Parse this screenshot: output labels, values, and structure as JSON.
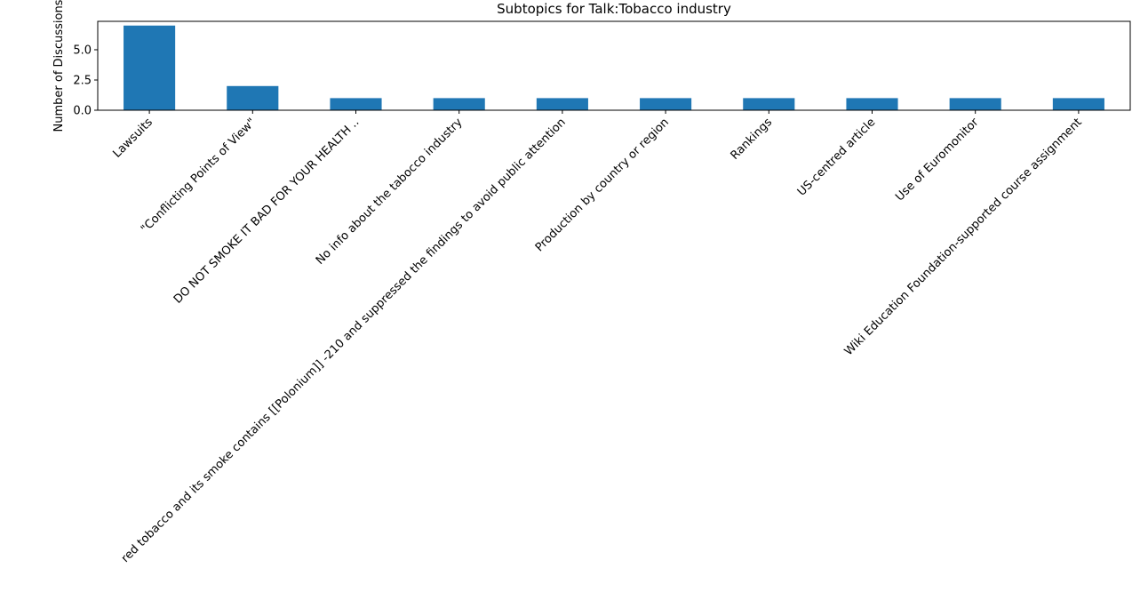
{
  "chart_data": {
    "type": "bar",
    "title": "Subtopics for Talk:Tobacco industry",
    "ylabel": "Number of Discussions",
    "categories": [
      "Lawsuits",
      "\"Conflicting Points of View\"",
      "DO NOT SMOKE IT BAD FOR YOUR HEALTH ..",
      "No info about the tabocco industry",
      "red tobacco and its smoke contains [[Polonium]] -210 and suppressed the findings to avoid public attention",
      "Production by country or region",
      "Rankings",
      "US-centred article",
      "Use of Euromonitor",
      "Wiki Education Foundation-supported course assignment"
    ],
    "values": [
      7,
      2,
      1,
      1,
      1,
      1,
      1,
      1,
      1,
      1
    ],
    "color": "#1f77b4",
    "ylim": [
      0,
      7.35
    ],
    "yticks": [
      {
        "value": 0,
        "label": "0.0"
      },
      {
        "value": 2.5,
        "label": "2.5"
      },
      {
        "value": 5,
        "label": "5.0"
      }
    ]
  }
}
